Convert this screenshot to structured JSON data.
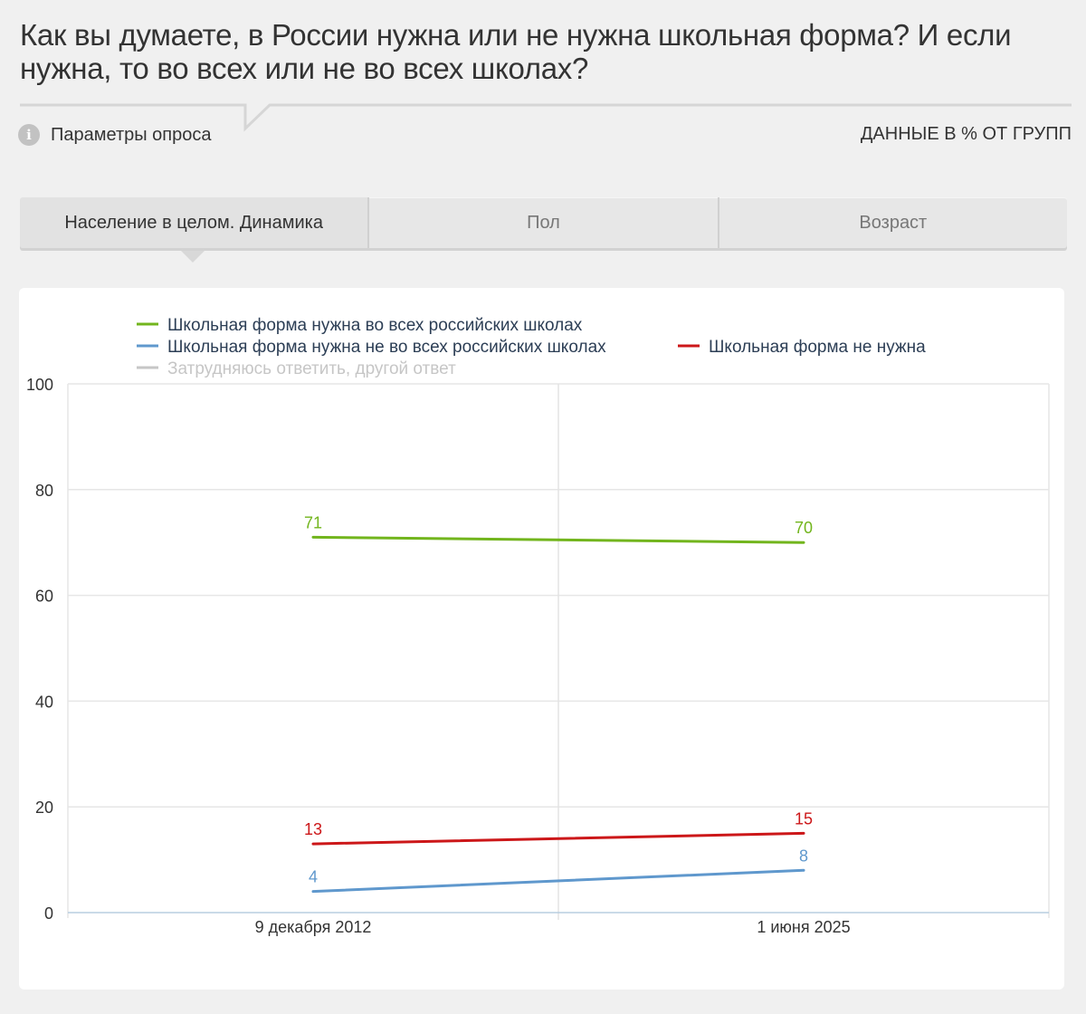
{
  "header": {
    "title": "Как вы думаете, в России нужна или не нужна школьная форма? И если нужна, то во всех или не во всех школах?",
    "params_label": "Параметры опроса",
    "info_icon": "info-icon",
    "units_label": "ДАННЫЕ В % ОТ ГРУПП"
  },
  "tabs": [
    {
      "label": "Население в целом. Динамика",
      "active": true
    },
    {
      "label": "Пол",
      "active": false
    },
    {
      "label": "Возраст",
      "active": false
    }
  ],
  "chart_data": {
    "type": "line",
    "x": [
      "9 декабря 2012",
      "1 июня 2025"
    ],
    "ylim": [
      0,
      100
    ],
    "yticks": [
      0,
      20,
      40,
      60,
      80,
      100
    ],
    "grid": true,
    "legend_position": "top",
    "series": [
      {
        "name": "Школьная форма нужна во всех российских школах",
        "color": "#72b51d",
        "values": [
          71,
          70
        ],
        "visible": true
      },
      {
        "name": "Школьная форма нужна не во всех российских школах",
        "color": "#5f98cd",
        "values": [
          4,
          8
        ],
        "visible": true
      },
      {
        "name": "Школьная форма не нужна",
        "color": "#cc1719",
        "values": [
          13,
          15
        ],
        "visible": true
      },
      {
        "name": "Затрудняюсь ответить, другой ответ",
        "color": "#c6c6c6",
        "values": [
          null,
          null
        ],
        "visible": false
      }
    ]
  }
}
